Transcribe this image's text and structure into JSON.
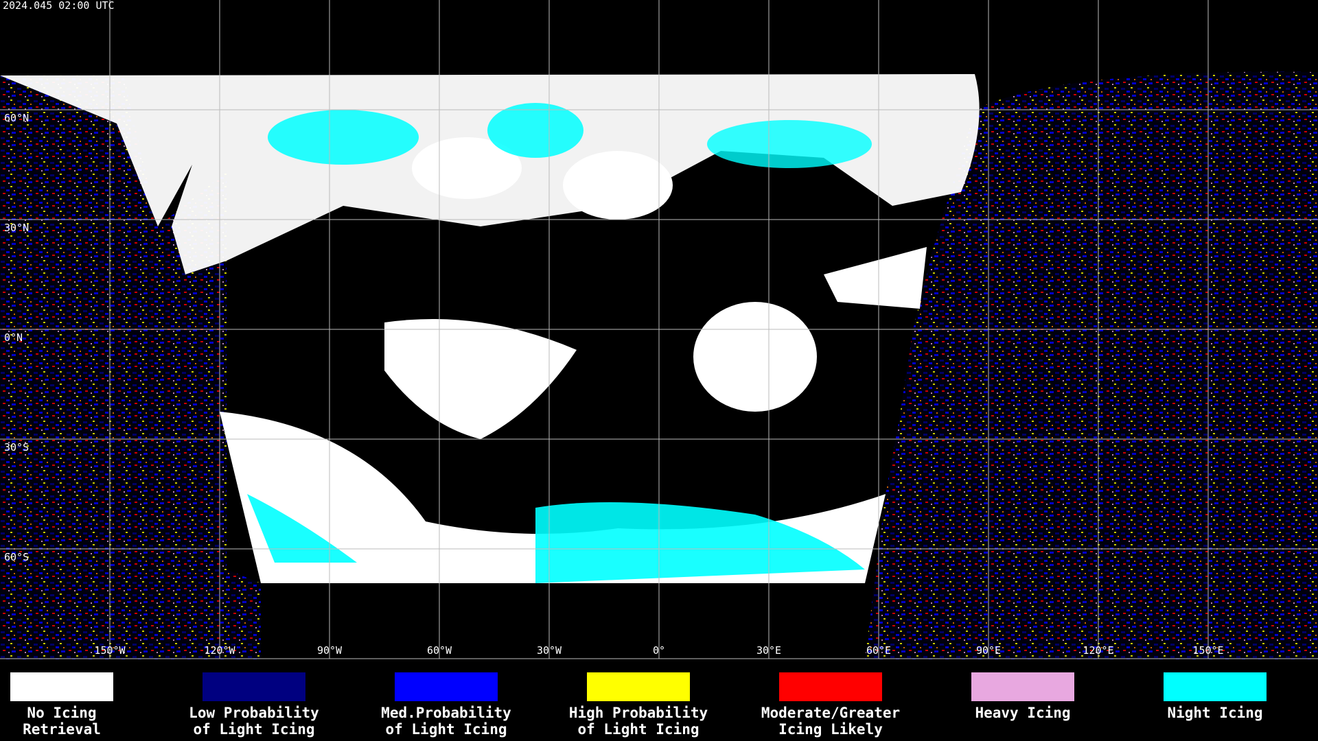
{
  "header": {
    "timestamp": "2024.045 02:00 UTC"
  },
  "map": {
    "lat_ticks": [
      {
        "value": 60,
        "label": "60°N"
      },
      {
        "value": 30,
        "label": "30°N"
      },
      {
        "value": 0,
        "label": "0°N"
      },
      {
        "value": -30,
        "label": "30°S"
      },
      {
        "value": -60,
        "label": "60°S"
      }
    ],
    "lon_ticks": [
      {
        "value": -150,
        "label": "150°W"
      },
      {
        "value": -120,
        "label": "120°W"
      },
      {
        "value": -90,
        "label": "90°W"
      },
      {
        "value": -60,
        "label": "60°W"
      },
      {
        "value": -30,
        "label": "30°W"
      },
      {
        "value": 0,
        "label": "0°"
      },
      {
        "value": 30,
        "label": "30°E"
      },
      {
        "value": 60,
        "label": "60°E"
      },
      {
        "value": 90,
        "label": "90°E"
      },
      {
        "value": 120,
        "label": "120°E"
      },
      {
        "value": 150,
        "label": "150°E"
      }
    ]
  },
  "legend": [
    {
      "color": "#ffffff",
      "lines": [
        "No Icing",
        "Retrieval"
      ]
    },
    {
      "color": "#000080",
      "lines": [
        "Low Probability",
        "of Light Icing"
      ]
    },
    {
      "color": "#0000ff",
      "lines": [
        "Med.Probability",
        "of Light Icing"
      ]
    },
    {
      "color": "#ffff00",
      "lines": [
        "High Probability",
        "of Light Icing"
      ]
    },
    {
      "color": "#ff0000",
      "lines": [
        "Moderate/Greater",
        "Icing Likely"
      ]
    },
    {
      "color": "#e8a8e0",
      "lines": [
        "Heavy Icing"
      ]
    },
    {
      "color": "#00ffff",
      "lines": [
        "Night Icing"
      ]
    }
  ]
}
